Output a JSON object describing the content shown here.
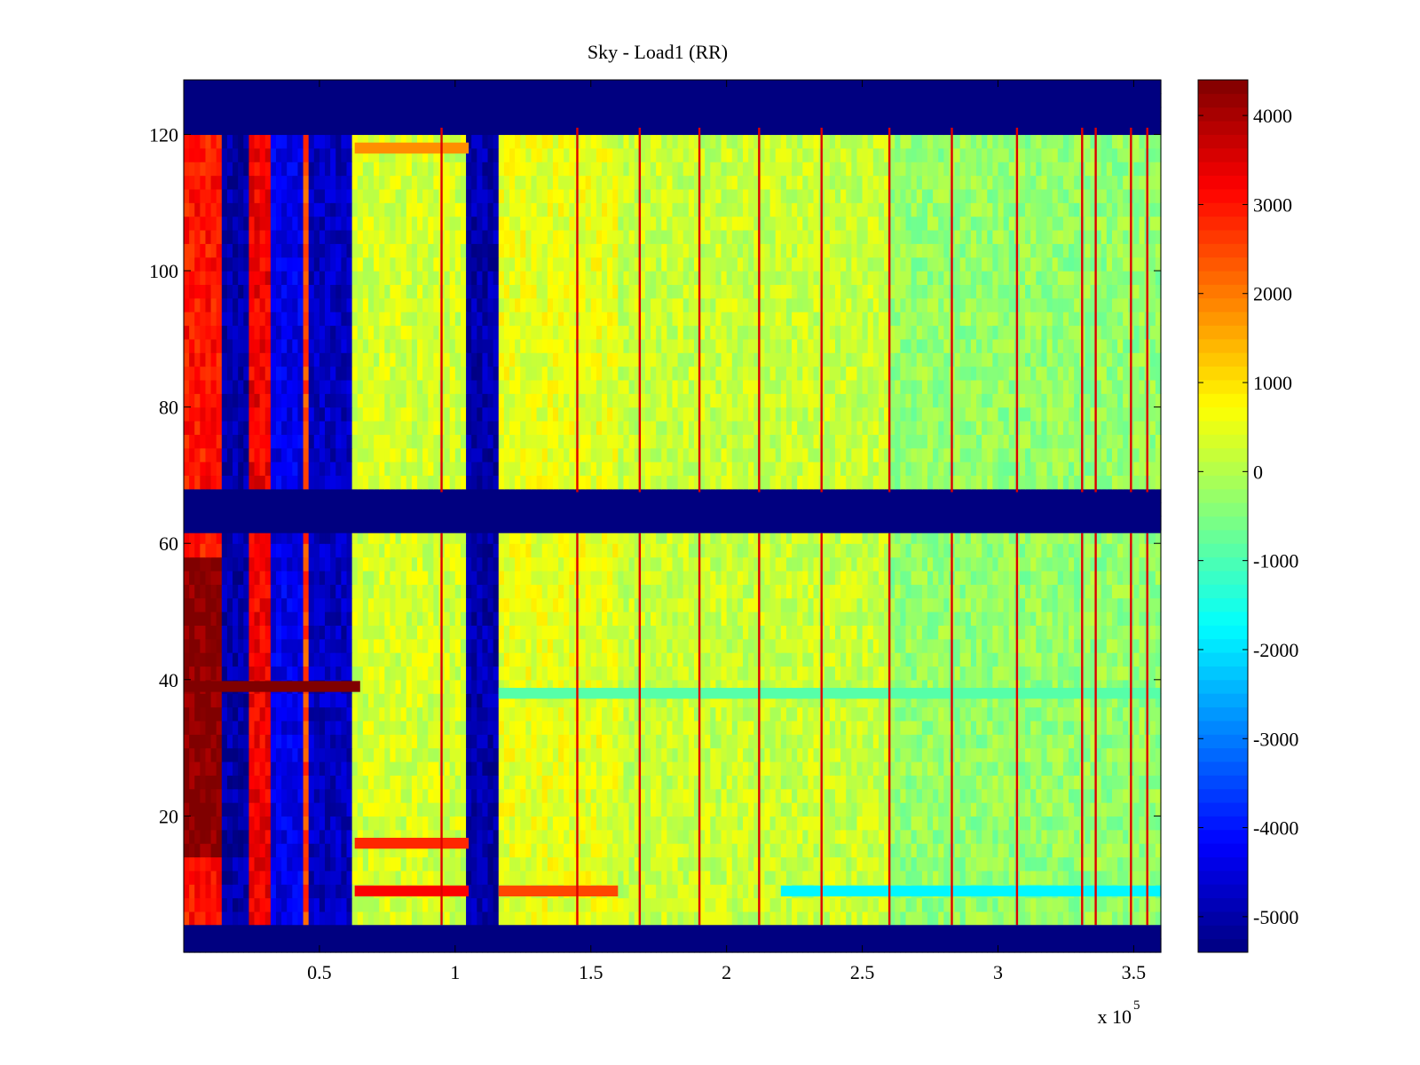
{
  "chart_data": {
    "type": "heatmap",
    "title": "Sky - Load1 (RR)",
    "xlabel": "",
    "ylabel": "",
    "x_exponent_label": "x 10",
    "x_exponent": "5",
    "xlim": [
      0,
      3.6
    ],
    "ylim": [
      0,
      128
    ],
    "x_ticks": [
      0.5,
      1,
      1.5,
      2,
      2.5,
      3,
      3.5
    ],
    "x_tick_labels": [
      "0.5",
      "1",
      "1.5",
      "2",
      "2.5",
      "3",
      "3.5"
    ],
    "y_ticks": [
      20,
      40,
      60,
      80,
      100,
      120
    ],
    "y_tick_labels": [
      "20",
      "40",
      "60",
      "80",
      "100",
      "120"
    ],
    "colormap": "jet",
    "clim": [
      -5400,
      4400
    ],
    "colorbar_ticks": [
      4000,
      3000,
      2000,
      1000,
      0,
      -1000,
      -2000,
      -3000,
      -4000,
      -5000
    ],
    "colorbar_tick_labels": [
      "4000",
      "3000",
      "2000",
      "1000",
      "0",
      "-1000",
      "-2000",
      "-3000",
      "-4000",
      "-5000"
    ],
    "masked_rows": [
      [
        0,
        4
      ],
      [
        61.5,
        67.5
      ],
      [
        121,
        128
      ]
    ],
    "masked_value": -5400,
    "background_value": 150,
    "column_bands": [
      {
        "x": [
          0,
          0.14
        ],
        "value": 3000,
        "note": "hot band"
      },
      {
        "x": [
          0.14,
          0.245
        ],
        "value": -5000
      },
      {
        "x": [
          0.245,
          0.315
        ],
        "value": 3300
      },
      {
        "x": [
          0.315,
          0.44
        ],
        "value": -4400
      },
      {
        "x": [
          0.44,
          0.47
        ],
        "value": 2500
      },
      {
        "x": [
          0.47,
          0.63
        ],
        "value": -4800
      },
      {
        "x": [
          0.63,
          1.05
        ],
        "value": 300
      },
      {
        "x": [
          1.05,
          1.16
        ],
        "value": -5000
      },
      {
        "x": [
          1.16,
          1.6
        ],
        "value": 500
      },
      {
        "x": [
          1.6,
          2.6
        ],
        "value": 200
      },
      {
        "x": [
          2.6,
          3.6
        ],
        "value": -300
      }
    ],
    "spike_columns_x": [
      0.95,
      1.45,
      1.68,
      1.9,
      2.12,
      2.35,
      2.6,
      2.83,
      3.07,
      3.31,
      3.36,
      3.49,
      3.55
    ],
    "spike_value": 3500,
    "hot_rows": [
      {
        "y": 39,
        "x": [
          0,
          0.65
        ],
        "value": 4400
      },
      {
        "y": 16,
        "x": [
          0.63,
          1.05
        ],
        "value": 2800
      },
      {
        "y": 9,
        "x": [
          0.63,
          1.05
        ],
        "value": 3200
      },
      {
        "y": 9,
        "x": [
          1.16,
          1.6
        ],
        "value": 2500
      },
      {
        "y": 118,
        "x": [
          0.63,
          1.05
        ],
        "value": 1800
      }
    ],
    "cool_rows": [
      {
        "y": 9,
        "x": [
          2.2,
          3.6
        ],
        "value": -1800
      },
      {
        "y": 38,
        "x": [
          1.16,
          3.6
        ],
        "value": -900
      }
    ],
    "saturated_region": {
      "x": [
        0,
        0.14
      ],
      "y": [
        14,
        58
      ],
      "value": 4400
    }
  }
}
